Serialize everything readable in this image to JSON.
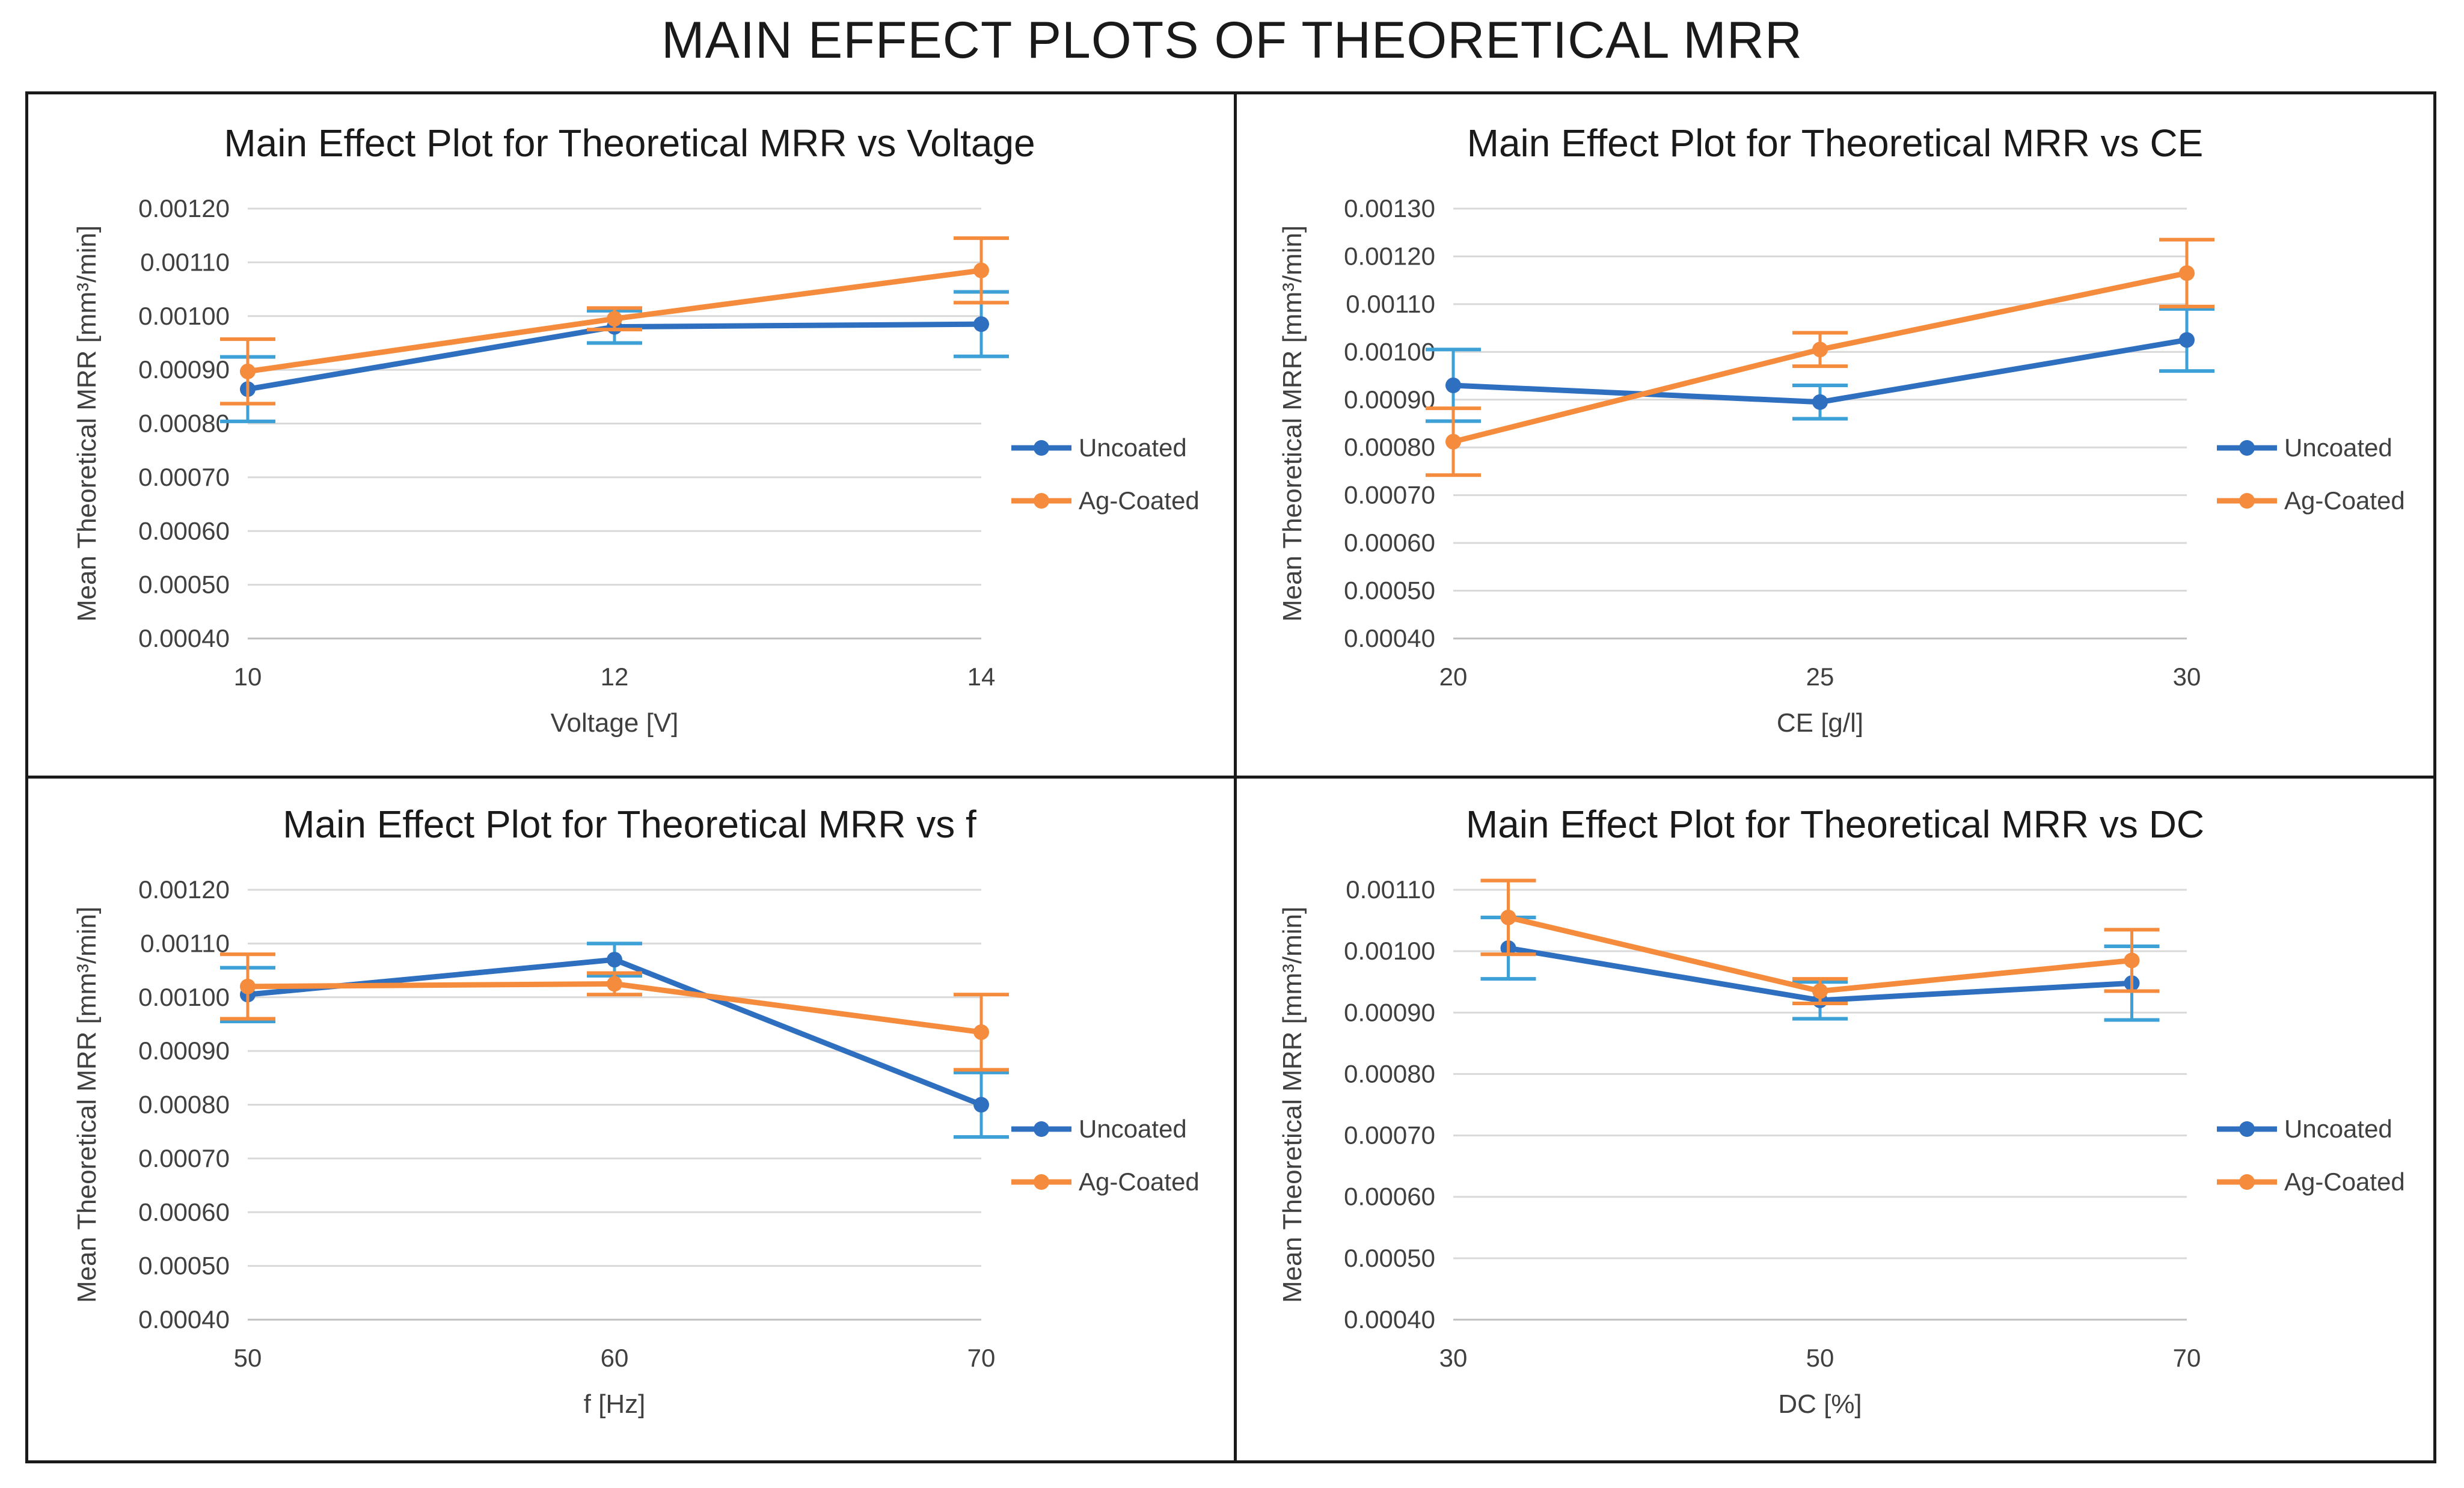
{
  "figure_title": "MAIN EFFECT PLOTS OF THEORETICAL MRR",
  "colors": {
    "uncoated": "#2f6fbf",
    "uncoated_error": "#3da0d6",
    "coated": "#f58b3c",
    "grid": "#d9d9d9",
    "axis": "#bfbfbf"
  },
  "chart_data": [
    {
      "type": "line",
      "title": "Main Effect Plot for Theoretical MRR vs Voltage",
      "xlabel": "Voltage [V]",
      "ylabel": "Mean Theoretical MRR [mm³/min]",
      "x": [
        10,
        12,
        14
      ],
      "xticks": [
        "10",
        "12",
        "14"
      ],
      "xlim": [
        10,
        14
      ],
      "ylim": [
        0.0004,
        0.0012
      ],
      "yticks": [
        "0.00040",
        "0.00050",
        "0.00060",
        "0.00070",
        "0.00080",
        "0.00090",
        "0.00100",
        "0.00110",
        "0.00120"
      ],
      "legend_position": "right",
      "series": [
        {
          "name": "Uncoated",
          "values": [
            0.000864,
            0.00098,
            0.000985
          ],
          "errors": [
            6e-05,
            3e-05,
            6e-05
          ]
        },
        {
          "name": "Ag-Coated",
          "values": [
            0.000897,
            0.000995,
            0.001085
          ],
          "errors": [
            6e-05,
            2e-05,
            6e-05
          ]
        }
      ]
    },
    {
      "type": "line",
      "title": "Main Effect Plot for Theoretical MRR vs CE",
      "xlabel": "CE [g/l]",
      "ylabel": "Mean Theoretical MRR [mm³/min]",
      "x": [
        20,
        25,
        30
      ],
      "xticks": [
        "20",
        "25",
        "30"
      ],
      "xlim": [
        20,
        30
      ],
      "ylim": [
        0.0004,
        0.0013
      ],
      "yticks": [
        "0.00040",
        "0.00050",
        "0.00060",
        "0.00070",
        "0.00080",
        "0.00090",
        "0.00100",
        "0.00110",
        "0.00120",
        "0.00130"
      ],
      "legend_position": "right",
      "series": [
        {
          "name": "Uncoated",
          "values": [
            0.00093,
            0.000895,
            0.001025
          ],
          "errors": [
            7.5e-05,
            3.5e-05,
            6.5e-05
          ]
        },
        {
          "name": "Ag-Coated",
          "values": [
            0.000812,
            0.001005,
            0.001165
          ],
          "errors": [
            7e-05,
            3.5e-05,
            7e-05
          ]
        }
      ]
    },
    {
      "type": "line",
      "title": "Main Effect Plot for Theoretical MRR vs f",
      "xlabel": "f [Hz]",
      "ylabel": "Mean Theoretical MRR [mm³/min]",
      "x": [
        50,
        60,
        70
      ],
      "xticks": [
        "50",
        "60",
        "70"
      ],
      "xlim": [
        50,
        70
      ],
      "ylim": [
        0.0004,
        0.0012
      ],
      "yticks": [
        "0.00040",
        "0.00050",
        "0.00060",
        "0.00070",
        "0.00080",
        "0.00090",
        "0.00100",
        "0.00110",
        "0.00120"
      ],
      "legend_position": "right",
      "series": [
        {
          "name": "Uncoated",
          "values": [
            0.001005,
            0.00107,
            0.0008
          ],
          "errors": [
            5e-05,
            3e-05,
            6e-05
          ]
        },
        {
          "name": "Ag-Coated",
          "values": [
            0.00102,
            0.001025,
            0.000935
          ],
          "errors": [
            6e-05,
            2e-05,
            7e-05
          ]
        }
      ]
    },
    {
      "type": "line",
      "title": "Main Effect Plot for Theoretical MRR vs DC",
      "xlabel": "DC [%]",
      "ylabel": "Mean Theoretical MRR [mm³/min]",
      "x": [
        33,
        50,
        67
      ],
      "xticks": [
        "30",
        "50",
        "70"
      ],
      "xtick_values": [
        30,
        50,
        70
      ],
      "xlim": [
        30,
        70
      ],
      "ylim": [
        0.0004,
        0.0011
      ],
      "yticks": [
        "0.00040",
        "0.00050",
        "0.00060",
        "0.00070",
        "0.00080",
        "0.00090",
        "0.00100",
        "0.00110"
      ],
      "legend_position": "right",
      "series": [
        {
          "name": "Uncoated",
          "values": [
            0.001005,
            0.00092,
            0.000948
          ],
          "errors": [
            5e-05,
            3e-05,
            6e-05
          ]
        },
        {
          "name": "Ag-Coated",
          "values": [
            0.001055,
            0.000935,
            0.000985
          ],
          "errors": [
            6e-05,
            2e-05,
            5e-05
          ]
        }
      ]
    }
  ]
}
